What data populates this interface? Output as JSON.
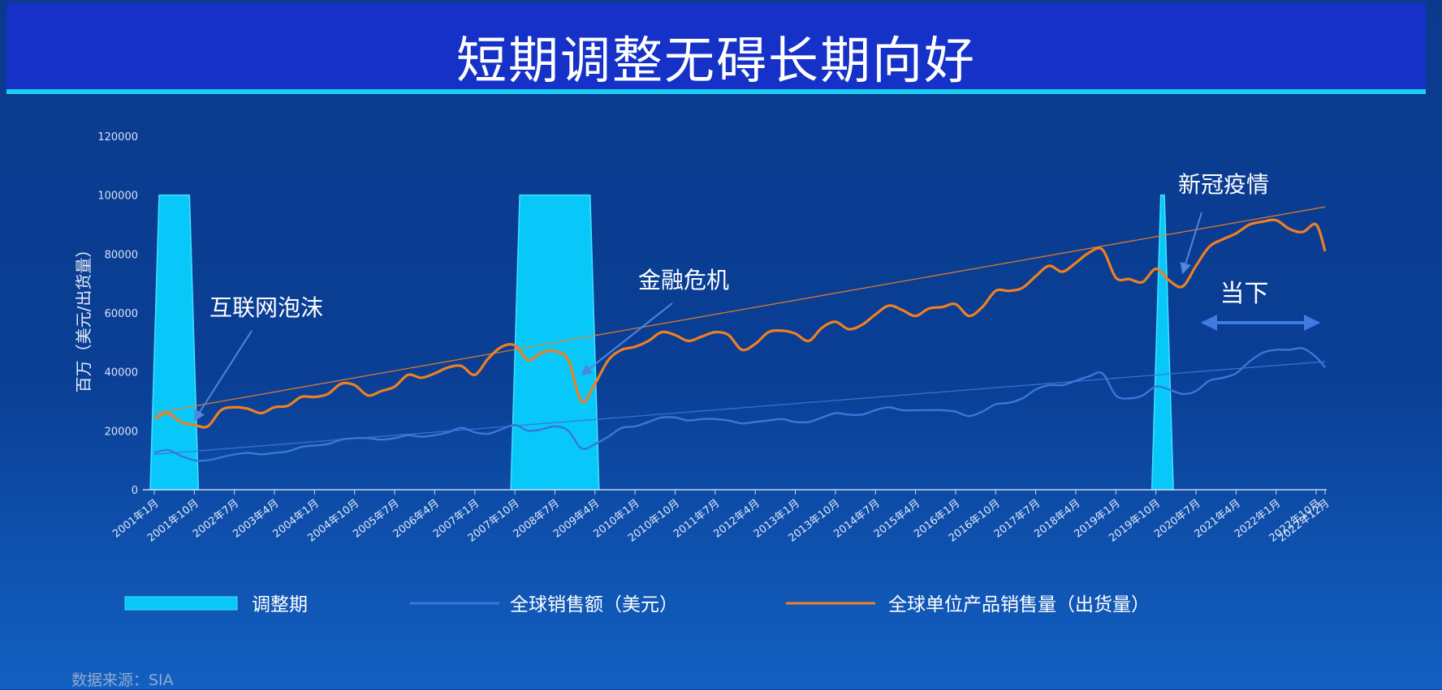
{
  "header": {
    "title": "短期调整无碍长期向好"
  },
  "source": "数据来源：SIA",
  "colors": {
    "header_bg": "#1531c8",
    "accent": "#19d0f2",
    "units_line": "#f07f22",
    "sales_line": "#3a77d9",
    "correction_fill": "#07c8f9"
  },
  "chart_data": {
    "type": "line",
    "ylabel": "百万（美元/出货量）",
    "ylim": [
      0,
      120000
    ],
    "yticks": [
      0,
      20000,
      40000,
      60000,
      80000,
      100000,
      120000
    ],
    "grid": false,
    "x_tick_labels": [
      "2001年1月",
      "2001年10月",
      "2002年7月",
      "2003年4月",
      "2004年1月",
      "2004年10月",
      "2005年7月",
      "2006年4月",
      "2007年1月",
      "2007年10月",
      "2008年7月",
      "2009年4月",
      "2010年1月",
      "2010年10月",
      "2011年7月",
      "2012年4月",
      "2013年1月",
      "2013年10月",
      "2014年7月",
      "2015年4月",
      "2016年1月",
      "2016年10月",
      "2017年7月",
      "2018年4月",
      "2019年1月",
      "2019年10月",
      "2020年7月",
      "2021年4月",
      "2022年1月",
      "2022年10月",
      "2022年12月"
    ],
    "correction_periods": [
      {
        "start": "2001年1月",
        "end": "2001年10月",
        "top": 100000
      },
      {
        "start": "2007年10月",
        "end": "2009年4月",
        "top": 100000
      },
      {
        "start": "2019年10月",
        "end": "2020年1月",
        "top": 100000
      }
    ],
    "series": [
      {
        "name": "全球单位产品销售量（出货量）",
        "color": "#f07f22",
        "points": [
          [
            "2001年1月",
            24000
          ],
          [
            "2001年4月",
            26000
          ],
          [
            "2001年7月",
            23000
          ],
          [
            "2001年10月",
            22000
          ],
          [
            "2002年1月",
            21500
          ],
          [
            "2002年4月",
            27000
          ],
          [
            "2002年7月",
            28000
          ],
          [
            "2002年10月",
            27500
          ],
          [
            "2003年1月",
            26000
          ],
          [
            "2003年4月",
            28000
          ],
          [
            "2003年7月",
            28500
          ],
          [
            "2003年10月",
            31500
          ],
          [
            "2004年1月",
            31500
          ],
          [
            "2004年4月",
            32500
          ],
          [
            "2004年7月",
            36000
          ],
          [
            "2004年10月",
            35500
          ],
          [
            "2005年1月",
            32000
          ],
          [
            "2005年4月",
            33500
          ],
          [
            "2005年7月",
            35000
          ],
          [
            "2005年10月",
            39000
          ],
          [
            "2006年1月",
            38000
          ],
          [
            "2006年4月",
            39500
          ],
          [
            "2006年7月",
            41500
          ],
          [
            "2006年10月",
            42000
          ],
          [
            "2007年1月",
            39000
          ],
          [
            "2007年4月",
            44500
          ],
          [
            "2007年7月",
            48500
          ],
          [
            "2007年10月",
            49000
          ],
          [
            "2008年1月",
            44000
          ],
          [
            "2008年4月",
            46500
          ],
          [
            "2008年7月",
            47000
          ],
          [
            "2008年10月",
            44000
          ],
          [
            "2009年1月",
            30000
          ],
          [
            "2009年4月",
            36000
          ],
          [
            "2009年7月",
            44000
          ],
          [
            "2009年10月",
            47500
          ],
          [
            "2010年1月",
            48500
          ],
          [
            "2010年4月",
            50500
          ],
          [
            "2010年7月",
            53500
          ],
          [
            "2010年10月",
            52500
          ],
          [
            "2011年1月",
            50500
          ],
          [
            "2011年4月",
            52000
          ],
          [
            "2011年7月",
            53500
          ],
          [
            "2011年10月",
            52500
          ],
          [
            "2012年1月",
            47500
          ],
          [
            "2012年4月",
            49500
          ],
          [
            "2012年7月",
            53500
          ],
          [
            "2012年10月",
            54000
          ],
          [
            "2013年1月",
            53000
          ],
          [
            "2013年4月",
            50500
          ],
          [
            "2013年7月",
            55000
          ],
          [
            "2013年10月",
            57000
          ],
          [
            "2014年1月",
            54500
          ],
          [
            "2014年4月",
            56000
          ],
          [
            "2014年7月",
            59500
          ],
          [
            "2014年10月",
            62500
          ],
          [
            "2015年1月",
            61000
          ],
          [
            "2015年4月",
            59000
          ],
          [
            "2015年7月",
            61500
          ],
          [
            "2015年10月",
            62000
          ],
          [
            "2016年1月",
            63000
          ],
          [
            "2016年4月",
            59000
          ],
          [
            "2016年7月",
            62000
          ],
          [
            "2016年10月",
            67500
          ],
          [
            "2017年1月",
            67500
          ],
          [
            "2017年4月",
            68500
          ],
          [
            "2017年7月",
            72500
          ],
          [
            "2017年10月",
            76000
          ],
          [
            "2018年1月",
            74000
          ],
          [
            "2018年4月",
            77000
          ],
          [
            "2018年7月",
            80500
          ],
          [
            "2018年10月",
            81500
          ],
          [
            "2019年1月",
            72000
          ],
          [
            "2019年4月",
            71500
          ],
          [
            "2019年7月",
            70500
          ],
          [
            "2019年10月",
            75000
          ],
          [
            "2020年1月",
            71000
          ],
          [
            "2020年4月",
            69000
          ],
          [
            "2020年7月",
            76000
          ],
          [
            "2020年10月",
            82500
          ],
          [
            "2021年1月",
            85000
          ],
          [
            "2021年4月",
            87000
          ],
          [
            "2021年7月",
            90000
          ],
          [
            "2021年10月",
            91000
          ],
          [
            "2022年1月",
            91500
          ],
          [
            "2022年4月",
            88500
          ],
          [
            "2022年7月",
            87500
          ],
          [
            "2022年10月",
            90000
          ],
          [
            "2022年12月",
            81000
          ]
        ]
      },
      {
        "name": "全球销售额（美元）",
        "color": "#3a77d9",
        "points": [
          [
            "2001年1月",
            12500
          ],
          [
            "2001年4月",
            13500
          ],
          [
            "2001年7月",
            11500
          ],
          [
            "2001年10月",
            10000
          ],
          [
            "2002年1月",
            10000
          ],
          [
            "2002年4月",
            11000
          ],
          [
            "2002年7月",
            12000
          ],
          [
            "2002年10月",
            12500
          ],
          [
            "2003年1月",
            12000
          ],
          [
            "2003年4月",
            12500
          ],
          [
            "2003年7月",
            13000
          ],
          [
            "2003年10月",
            14500
          ],
          [
            "2004年1月",
            15000
          ],
          [
            "2004年4月",
            15500
          ],
          [
            "2004年7月",
            17000
          ],
          [
            "2004年10月",
            17500
          ],
          [
            "2005年1月",
            17500
          ],
          [
            "2005年4月",
            17000
          ],
          [
            "2005年7月",
            17500
          ],
          [
            "2005年10月",
            18500
          ],
          [
            "2006年1月",
            18000
          ],
          [
            "2006年4月",
            18500
          ],
          [
            "2006年7月",
            19500
          ],
          [
            "2006年10月",
            21000
          ],
          [
            "2007年1月",
            19500
          ],
          [
            "2007年4月",
            19000
          ],
          [
            "2007年7月",
            20500
          ],
          [
            "2007年10月",
            22000
          ],
          [
            "2008年1月",
            20000
          ],
          [
            "2008年4月",
            20500
          ],
          [
            "2008年7月",
            21500
          ],
          [
            "2008年10月",
            20000
          ],
          [
            "2009年1月",
            14000
          ],
          [
            "2009年4月",
            15500
          ],
          [
            "2009年7月",
            18000
          ],
          [
            "2009年10月",
            21000
          ],
          [
            "2010年1月",
            21500
          ],
          [
            "2010年4月",
            23000
          ],
          [
            "2010年7月",
            24500
          ],
          [
            "2010年10月",
            24500
          ],
          [
            "2011年1月",
            23500
          ],
          [
            "2011年4月",
            24000
          ],
          [
            "2011年7月",
            24000
          ],
          [
            "2011年10月",
            23500
          ],
          [
            "2012年1月",
            22500
          ],
          [
            "2012年4月",
            23000
          ],
          [
            "2012年7月",
            23500
          ],
          [
            "2012年10月",
            24000
          ],
          [
            "2013年1月",
            23000
          ],
          [
            "2013年4月",
            23000
          ],
          [
            "2013年7月",
            24500
          ],
          [
            "2013年10月",
            26000
          ],
          [
            "2014年1月",
            25500
          ],
          [
            "2014年4月",
            25500
          ],
          [
            "2014年7月",
            27000
          ],
          [
            "2014年10月",
            28000
          ],
          [
            "2015年1月",
            27000
          ],
          [
            "2015年4月",
            27000
          ],
          [
            "2015年7月",
            27000
          ],
          [
            "2015年10月",
            27000
          ],
          [
            "2016年1月",
            26500
          ],
          [
            "2016年4月",
            25000
          ],
          [
            "2016年7月",
            26500
          ],
          [
            "2016年10月",
            29000
          ],
          [
            "2017年1月",
            29500
          ],
          [
            "2017年4月",
            31000
          ],
          [
            "2017年7月",
            34000
          ],
          [
            "2017年10月",
            35500
          ],
          [
            "2018年1月",
            35500
          ],
          [
            "2018年4月",
            37000
          ],
          [
            "2018年7月",
            38500
          ],
          [
            "2018年10月",
            39500
          ],
          [
            "2019年1月",
            32000
          ],
          [
            "2019年4月",
            31000
          ],
          [
            "2019年7月",
            32000
          ],
          [
            "2019年10月",
            35000
          ],
          [
            "2020年1月",
            34000
          ],
          [
            "2020年4月",
            32500
          ],
          [
            "2020年7月",
            33500
          ],
          [
            "2020年10月",
            37000
          ],
          [
            "2021年1月",
            38000
          ],
          [
            "2021年4月",
            39500
          ],
          [
            "2021年7月",
            43500
          ],
          [
            "2021年10月",
            46500
          ],
          [
            "2022年1月",
            47500
          ],
          [
            "2022年4月",
            47500
          ],
          [
            "2022年7月",
            48000
          ],
          [
            "2022年10月",
            45000
          ],
          [
            "2022年12月",
            41500
          ]
        ]
      }
    ],
    "trendlines": [
      {
        "series": "全球单位产品销售量（出货量）",
        "start": [
          "2001年1月",
          26000
        ],
        "end": [
          "2022年12月",
          96000
        ]
      },
      {
        "series": "全球销售额（美元）",
        "start": [
          "2001年1月",
          12000
        ],
        "end": [
          "2022年12月",
          43500
        ]
      }
    ],
    "annotations": [
      {
        "name": "dotcom-bubble",
        "text": "互联网泡沫",
        "point_to": [
          "2001年10月",
          23500
        ]
      },
      {
        "name": "financial-crisis",
        "text": "金融危机",
        "point_to": [
          "2009年1月",
          39000
        ]
      },
      {
        "name": "covid",
        "text": "新冠疫情",
        "point_to": [
          "2020年4月",
          73500
        ]
      },
      {
        "name": "present",
        "text": "当下",
        "span": [
          "2020年7月",
          "2022年12月"
        ],
        "at": 60000
      }
    ],
    "legend": {
      "placement": "bottom",
      "items": [
        {
          "label": "调整期",
          "kind": "band"
        },
        {
          "label": "全球销售额（美元）",
          "kind": "line-blue"
        },
        {
          "label": "全球单位产品销售量（出货量）",
          "kind": "line-orange"
        }
      ]
    }
  }
}
